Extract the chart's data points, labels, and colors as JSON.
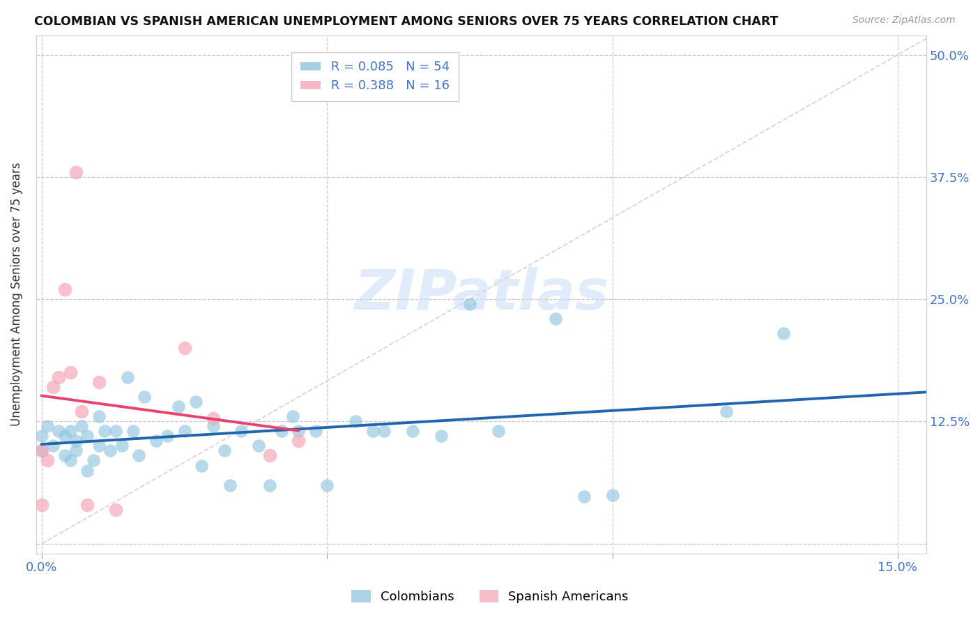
{
  "title": "COLOMBIAN VS SPANISH AMERICAN UNEMPLOYMENT AMONG SENIORS OVER 75 YEARS CORRELATION CHART",
  "source": "Source: ZipAtlas.com",
  "ylabel": "Unemployment Among Seniors over 75 years",
  "xlim": [
    -0.001,
    0.155
  ],
  "ylim": [
    -0.01,
    0.52
  ],
  "ytick_positions": [
    0.0,
    0.125,
    0.25,
    0.375,
    0.5
  ],
  "ytick_labels": [
    "",
    "12.5%",
    "25.0%",
    "37.5%",
    "50.0%"
  ],
  "xtick_positions": [
    0.0,
    0.05,
    0.1,
    0.15
  ],
  "xtick_labels": [
    "0.0%",
    "",
    "",
    "15.0%"
  ],
  "colombian_R": 0.085,
  "colombian_N": 54,
  "spanish_R": 0.388,
  "spanish_N": 16,
  "colombian_color": "#92c5de",
  "spanish_color": "#f4a7b9",
  "trend_colombian_color": "#2166ac",
  "trend_spanish_color": "#e8436e",
  "diagonal_color": "#cccccc",
  "colombian_x": [
    0.0,
    0.0,
    0.001,
    0.002,
    0.003,
    0.004,
    0.004,
    0.005,
    0.005,
    0.006,
    0.006,
    0.007,
    0.008,
    0.008,
    0.009,
    0.01,
    0.01,
    0.011,
    0.012,
    0.013,
    0.014,
    0.015,
    0.016,
    0.017,
    0.018,
    0.02,
    0.022,
    0.024,
    0.025,
    0.027,
    0.028,
    0.03,
    0.032,
    0.033,
    0.035,
    0.038,
    0.04,
    0.042,
    0.044,
    0.045,
    0.048,
    0.05,
    0.055,
    0.058,
    0.06,
    0.065,
    0.07,
    0.075,
    0.08,
    0.09,
    0.095,
    0.1,
    0.12,
    0.13
  ],
  "colombian_y": [
    0.095,
    0.11,
    0.12,
    0.1,
    0.115,
    0.09,
    0.11,
    0.085,
    0.115,
    0.095,
    0.105,
    0.12,
    0.075,
    0.11,
    0.085,
    0.1,
    0.13,
    0.115,
    0.095,
    0.115,
    0.1,
    0.17,
    0.115,
    0.09,
    0.15,
    0.105,
    0.11,
    0.14,
    0.115,
    0.145,
    0.08,
    0.12,
    0.095,
    0.06,
    0.115,
    0.1,
    0.06,
    0.115,
    0.13,
    0.115,
    0.115,
    0.06,
    0.125,
    0.115,
    0.115,
    0.115,
    0.11,
    0.245,
    0.115,
    0.23,
    0.048,
    0.05,
    0.135,
    0.215
  ],
  "spanish_x": [
    0.0,
    0.0,
    0.001,
    0.002,
    0.003,
    0.004,
    0.005,
    0.006,
    0.007,
    0.008,
    0.01,
    0.013,
    0.025,
    0.03,
    0.04,
    0.045
  ],
  "spanish_y": [
    0.095,
    0.04,
    0.085,
    0.16,
    0.17,
    0.26,
    0.175,
    0.38,
    0.135,
    0.04,
    0.165,
    0.035,
    0.2,
    0.128,
    0.09,
    0.105
  ]
}
